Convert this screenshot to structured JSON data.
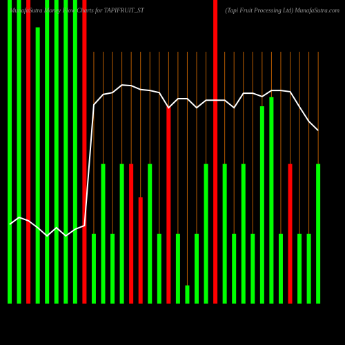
{
  "chart_data": {
    "type": "bar-line",
    "title": "MunafaSutra Money Flow Charts for TAPIFRUIT_ST",
    "subtitle": "(Tapi Fruit Processing Ltd) MunafaSutra.com",
    "ylim": [
      0,
      100
    ],
    "vgrid": true,
    "grid_color": "#b85c00",
    "background": "#000000",
    "series": [
      {
        "type": "bar",
        "values": [
          100,
          100,
          100,
          91,
          100,
          100,
          100,
          100,
          100,
          23,
          46,
          23,
          46,
          46,
          35,
          46,
          23,
          65,
          23,
          6,
          23,
          46,
          100,
          46,
          23,
          46,
          23,
          65,
          68,
          23,
          46,
          23,
          23,
          46
        ],
        "colors": [
          "#00ff00",
          "#00ff00",
          "#ff0000",
          "#00ff00",
          "#00ff00",
          "#00ff00",
          "#00ff00",
          "#00ff00",
          "#ff0000",
          "#00ff00",
          "#00ff00",
          "#00ff00",
          "#00ff00",
          "#ff0000",
          "#ff0000",
          "#00ff00",
          "#00ff00",
          "#ff0000",
          "#00ff00",
          "#00ff00",
          "#00ff00",
          "#00ff00",
          "#ff0000",
          "#00ff00",
          "#00ff00",
          "#00ff00",
          "#00ff00",
          "#00ff00",
          "#00ff00",
          "#00ff00",
          "#ff0000",
          "#00ff00",
          "#00ff00",
          "#00ff00"
        ]
      },
      {
        "type": "line",
        "color": "#ffffff",
        "values": [
          26.1,
          28.4,
          27.3,
          25,
          22.3,
          25,
          22.3,
          24.5,
          25.7,
          65.5,
          68.9,
          69.5,
          72,
          71.8,
          70.5,
          70.2,
          69.5,
          64.5,
          67.5,
          67.5,
          64.5,
          67,
          67,
          67,
          64.5,
          69.3,
          69.3,
          68.2,
          70.2,
          70.2,
          69.8,
          64.8,
          60,
          57
        ]
      }
    ]
  }
}
